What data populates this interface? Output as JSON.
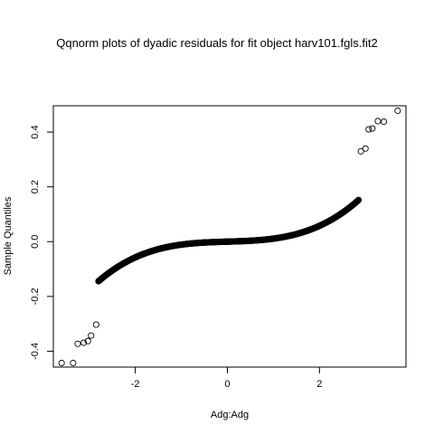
{
  "chart_data": {
    "type": "scatter",
    "title": "Qqnorm plots of dyadic residuals for fit object  harv101.fgls.fit2",
    "xlabel": "Adg:Adg",
    "ylabel": "Sample Quantiles",
    "xlim": [
      -3.78,
      3.88
    ],
    "ylim": [
      -0.458,
      0.496
    ],
    "x_ticks": [
      -2,
      0,
      2
    ],
    "x_tick_labels": [
      "-2",
      "0",
      "2"
    ],
    "y_ticks": [
      -0.4,
      -0.2,
      0.0,
      0.2,
      0.4
    ],
    "y_tick_labels": [
      "-0.4",
      "-0.2",
      "0.0",
      "0.2",
      "0.4"
    ],
    "grid": false,
    "legend": "none",
    "marker": "open-circle",
    "n_points": 600,
    "tail_points": [
      {
        "x": -3.6,
        "y": -0.443
      },
      {
        "x": -3.35,
        "y": -0.443
      },
      {
        "x": -3.25,
        "y": -0.373
      },
      {
        "x": -3.12,
        "y": -0.369
      },
      {
        "x": -3.03,
        "y": -0.363
      },
      {
        "x": -2.96,
        "y": -0.343
      },
      {
        "x": -2.85,
        "y": -0.303
      },
      {
        "x": 2.9,
        "y": 0.33
      },
      {
        "x": 3.0,
        "y": 0.34
      },
      {
        "x": 3.07,
        "y": 0.41
      },
      {
        "x": 3.15,
        "y": 0.413
      },
      {
        "x": 3.27,
        "y": 0.44
      },
      {
        "x": 3.4,
        "y": 0.438
      },
      {
        "x": 3.7,
        "y": 0.478
      }
    ],
    "curve_shape": {
      "a": 0.00595,
      "b": 0.005,
      "x_min": -2.8,
      "x_max": 2.85
    }
  }
}
